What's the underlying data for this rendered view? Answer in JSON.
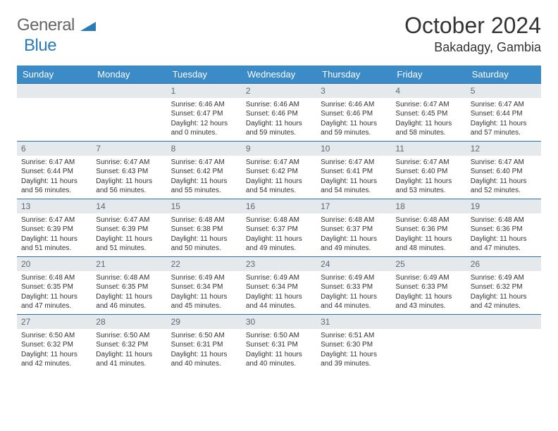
{
  "logo": {
    "general": "General",
    "blue": "Blue"
  },
  "title": "October 2024",
  "location": "Bakadagy, Gambia",
  "colors": {
    "header_bg": "#3b8bc9",
    "header_text": "#ffffff",
    "daynum_bg": "#e6e9ec",
    "daynum_text": "#5a6a78",
    "row_border": "#2a6fa5",
    "body_text": "#333333",
    "logo_gray": "#666666",
    "logo_blue": "#2a7ab8"
  },
  "day_headers": [
    "Sunday",
    "Monday",
    "Tuesday",
    "Wednesday",
    "Thursday",
    "Friday",
    "Saturday"
  ],
  "weeks": [
    [
      {
        "n": "",
        "lines": [
          "",
          "",
          "",
          ""
        ]
      },
      {
        "n": "",
        "lines": [
          "",
          "",
          "",
          ""
        ]
      },
      {
        "n": "1",
        "lines": [
          "Sunrise: 6:46 AM",
          "Sunset: 6:47 PM",
          "Daylight: 12 hours",
          "and 0 minutes."
        ]
      },
      {
        "n": "2",
        "lines": [
          "Sunrise: 6:46 AM",
          "Sunset: 6:46 PM",
          "Daylight: 11 hours",
          "and 59 minutes."
        ]
      },
      {
        "n": "3",
        "lines": [
          "Sunrise: 6:46 AM",
          "Sunset: 6:46 PM",
          "Daylight: 11 hours",
          "and 59 minutes."
        ]
      },
      {
        "n": "4",
        "lines": [
          "Sunrise: 6:47 AM",
          "Sunset: 6:45 PM",
          "Daylight: 11 hours",
          "and 58 minutes."
        ]
      },
      {
        "n": "5",
        "lines": [
          "Sunrise: 6:47 AM",
          "Sunset: 6:44 PM",
          "Daylight: 11 hours",
          "and 57 minutes."
        ]
      }
    ],
    [
      {
        "n": "6",
        "lines": [
          "Sunrise: 6:47 AM",
          "Sunset: 6:44 PM",
          "Daylight: 11 hours",
          "and 56 minutes."
        ]
      },
      {
        "n": "7",
        "lines": [
          "Sunrise: 6:47 AM",
          "Sunset: 6:43 PM",
          "Daylight: 11 hours",
          "and 56 minutes."
        ]
      },
      {
        "n": "8",
        "lines": [
          "Sunrise: 6:47 AM",
          "Sunset: 6:42 PM",
          "Daylight: 11 hours",
          "and 55 minutes."
        ]
      },
      {
        "n": "9",
        "lines": [
          "Sunrise: 6:47 AM",
          "Sunset: 6:42 PM",
          "Daylight: 11 hours",
          "and 54 minutes."
        ]
      },
      {
        "n": "10",
        "lines": [
          "Sunrise: 6:47 AM",
          "Sunset: 6:41 PM",
          "Daylight: 11 hours",
          "and 54 minutes."
        ]
      },
      {
        "n": "11",
        "lines": [
          "Sunrise: 6:47 AM",
          "Sunset: 6:40 PM",
          "Daylight: 11 hours",
          "and 53 minutes."
        ]
      },
      {
        "n": "12",
        "lines": [
          "Sunrise: 6:47 AM",
          "Sunset: 6:40 PM",
          "Daylight: 11 hours",
          "and 52 minutes."
        ]
      }
    ],
    [
      {
        "n": "13",
        "lines": [
          "Sunrise: 6:47 AM",
          "Sunset: 6:39 PM",
          "Daylight: 11 hours",
          "and 51 minutes."
        ]
      },
      {
        "n": "14",
        "lines": [
          "Sunrise: 6:47 AM",
          "Sunset: 6:39 PM",
          "Daylight: 11 hours",
          "and 51 minutes."
        ]
      },
      {
        "n": "15",
        "lines": [
          "Sunrise: 6:48 AM",
          "Sunset: 6:38 PM",
          "Daylight: 11 hours",
          "and 50 minutes."
        ]
      },
      {
        "n": "16",
        "lines": [
          "Sunrise: 6:48 AM",
          "Sunset: 6:37 PM",
          "Daylight: 11 hours",
          "and 49 minutes."
        ]
      },
      {
        "n": "17",
        "lines": [
          "Sunrise: 6:48 AM",
          "Sunset: 6:37 PM",
          "Daylight: 11 hours",
          "and 49 minutes."
        ]
      },
      {
        "n": "18",
        "lines": [
          "Sunrise: 6:48 AM",
          "Sunset: 6:36 PM",
          "Daylight: 11 hours",
          "and 48 minutes."
        ]
      },
      {
        "n": "19",
        "lines": [
          "Sunrise: 6:48 AM",
          "Sunset: 6:36 PM",
          "Daylight: 11 hours",
          "and 47 minutes."
        ]
      }
    ],
    [
      {
        "n": "20",
        "lines": [
          "Sunrise: 6:48 AM",
          "Sunset: 6:35 PM",
          "Daylight: 11 hours",
          "and 47 minutes."
        ]
      },
      {
        "n": "21",
        "lines": [
          "Sunrise: 6:48 AM",
          "Sunset: 6:35 PM",
          "Daylight: 11 hours",
          "and 46 minutes."
        ]
      },
      {
        "n": "22",
        "lines": [
          "Sunrise: 6:49 AM",
          "Sunset: 6:34 PM",
          "Daylight: 11 hours",
          "and 45 minutes."
        ]
      },
      {
        "n": "23",
        "lines": [
          "Sunrise: 6:49 AM",
          "Sunset: 6:34 PM",
          "Daylight: 11 hours",
          "and 44 minutes."
        ]
      },
      {
        "n": "24",
        "lines": [
          "Sunrise: 6:49 AM",
          "Sunset: 6:33 PM",
          "Daylight: 11 hours",
          "and 44 minutes."
        ]
      },
      {
        "n": "25",
        "lines": [
          "Sunrise: 6:49 AM",
          "Sunset: 6:33 PM",
          "Daylight: 11 hours",
          "and 43 minutes."
        ]
      },
      {
        "n": "26",
        "lines": [
          "Sunrise: 6:49 AM",
          "Sunset: 6:32 PM",
          "Daylight: 11 hours",
          "and 42 minutes."
        ]
      }
    ],
    [
      {
        "n": "27",
        "lines": [
          "Sunrise: 6:50 AM",
          "Sunset: 6:32 PM",
          "Daylight: 11 hours",
          "and 42 minutes."
        ]
      },
      {
        "n": "28",
        "lines": [
          "Sunrise: 6:50 AM",
          "Sunset: 6:32 PM",
          "Daylight: 11 hours",
          "and 41 minutes."
        ]
      },
      {
        "n": "29",
        "lines": [
          "Sunrise: 6:50 AM",
          "Sunset: 6:31 PM",
          "Daylight: 11 hours",
          "and 40 minutes."
        ]
      },
      {
        "n": "30",
        "lines": [
          "Sunrise: 6:50 AM",
          "Sunset: 6:31 PM",
          "Daylight: 11 hours",
          "and 40 minutes."
        ]
      },
      {
        "n": "31",
        "lines": [
          "Sunrise: 6:51 AM",
          "Sunset: 6:30 PM",
          "Daylight: 11 hours",
          "and 39 minutes."
        ]
      },
      {
        "n": "",
        "lines": [
          "",
          "",
          "",
          ""
        ]
      },
      {
        "n": "",
        "lines": [
          "",
          "",
          "",
          ""
        ]
      }
    ]
  ]
}
